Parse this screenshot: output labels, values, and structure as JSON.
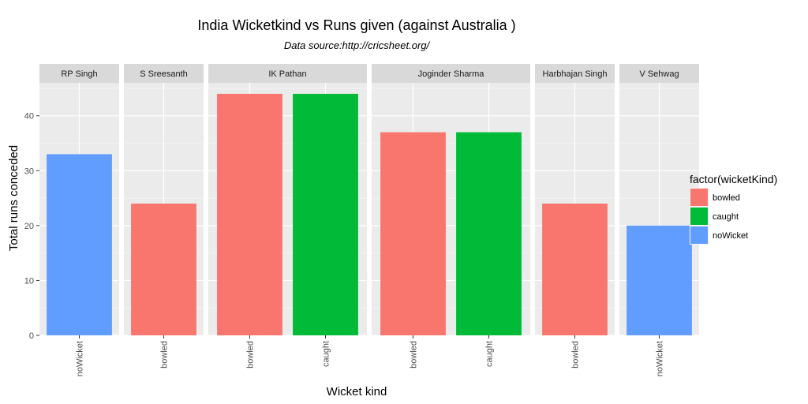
{
  "chart_data": {
    "type": "bar",
    "title": "India Wicketkind vs Runs given (against Australia )",
    "subtitle": "Data source:http://cricsheet.org/",
    "xlabel": "Wicket kind",
    "ylabel": "Total runs conceded",
    "ylim": [
      0,
      46
    ],
    "yticks": [
      0,
      10,
      20,
      30,
      40
    ],
    "grid": true,
    "legend": {
      "title": "factor(wicketKind)",
      "placement": "right",
      "items": [
        {
          "name": "bowled",
          "color": "#F8766D"
        },
        {
          "name": "caught",
          "color": "#00BA38"
        },
        {
          "name": "noWicket",
          "color": "#619CFF"
        }
      ]
    },
    "facets": [
      {
        "name": "RP Singh",
        "categories": [
          "noWicket"
        ],
        "values": [
          33
        ]
      },
      {
        "name": "S Sreesanth",
        "categories": [
          "bowled"
        ],
        "values": [
          24
        ]
      },
      {
        "name": "IK Pathan",
        "categories": [
          "bowled",
          "caught"
        ],
        "values": [
          44,
          44
        ]
      },
      {
        "name": "Joginder Sharma",
        "categories": [
          "bowled",
          "caught"
        ],
        "values": [
          37,
          37
        ]
      },
      {
        "name": "Harbhajan Singh",
        "categories": [
          "bowled"
        ],
        "values": [
          24
        ]
      },
      {
        "name": "V Sehwag",
        "categories": [
          "noWicket"
        ],
        "values": [
          20
        ]
      }
    ]
  }
}
